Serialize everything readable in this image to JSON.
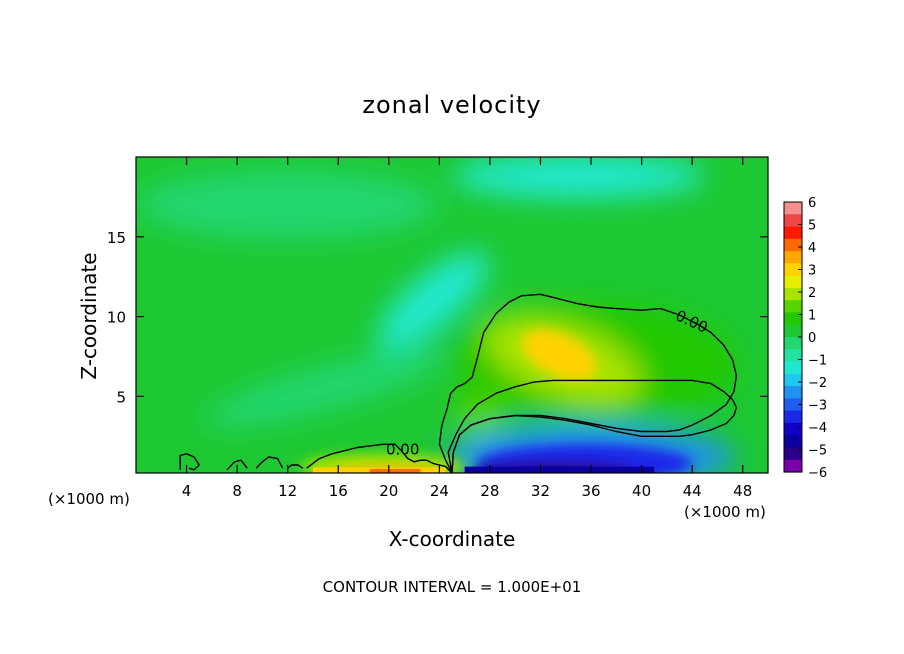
{
  "chart_data": {
    "type": "heatmap",
    "title": "zonal velocity",
    "xlabel": "X-coordinate",
    "ylabel": "Z-coordinate",
    "x_unit_left": "(×1000 m)",
    "x_unit_right": "(×1000 m)",
    "footer": "CONTOUR INTERVAL = 1.000E+01",
    "xlim": [
      0,
      50
    ],
    "ylim": [
      0.2,
      20
    ],
    "x_ticks": [
      4,
      8,
      12,
      16,
      20,
      24,
      28,
      32,
      36,
      40,
      44,
      48
    ],
    "y_ticks": [
      5,
      10,
      15
    ],
    "colorbar": {
      "levels": [
        6,
        5,
        4,
        3,
        2,
        1,
        0,
        -1,
        -2,
        -3,
        -4,
        -5,
        -6
      ],
      "colors": [
        "#f59090",
        "#f04646",
        "#ff1a00",
        "#ff6a00",
        "#ffa800",
        "#ffd200",
        "#e8ee00",
        "#a8e400",
        "#55d400",
        "#22c800",
        "#1ec832",
        "#22d670",
        "#22e2a4",
        "#20e8d0",
        "#20c8f0",
        "#2092f0",
        "#205cf0",
        "#1c28e8",
        "#1000c8",
        "#0a00a0",
        "#2a008a",
        "#7a00a8"
      ]
    },
    "background_value": 0.3,
    "features": [
      {
        "kind": "jet",
        "label": "positive maximum",
        "x": 33.5,
        "z": 7.5,
        "value": 3.4
      },
      {
        "kind": "jet",
        "label": "near-surface positive",
        "x": 20,
        "z": 0.4,
        "value": 4
      },
      {
        "kind": "return flow",
        "label": "near-surface negative",
        "x": 36,
        "z": 0.6,
        "value": -5.5
      },
      {
        "kind": "weak negative",
        "label": "mid-level band",
        "x": 23,
        "z": 11,
        "value": -1.5
      },
      {
        "kind": "weak negative",
        "label": "upper band",
        "x": 35,
        "z": 18.5,
        "value": -1.2
      }
    ],
    "contours": [
      {
        "level_label": "0.00",
        "x": [
          25.0,
          24.7,
          25.3,
          26.0,
          27.0,
          28.5,
          30.0,
          31.5,
          33.0,
          34.5,
          36.5,
          38.0,
          40.0,
          42.0,
          44.0,
          45.5,
          46.5,
          47.2,
          47.5,
          47.3,
          46.7,
          45.5,
          44.0,
          43.0,
          42.0,
          40.0,
          38.0,
          36.0,
          34.0,
          32.0,
          30.0,
          28.0,
          26.5,
          25.6,
          25.1,
          25.0
        ],
        "z": [
          0.2,
          1.5,
          2.6,
          3.6,
          4.5,
          5.2,
          5.6,
          5.9,
          6.0,
          6.0,
          6.0,
          6.0,
          6.0,
          6.0,
          6.0,
          5.8,
          5.3,
          4.8,
          4.3,
          3.8,
          3.3,
          2.9,
          2.6,
          2.5,
          2.5,
          2.5,
          2.8,
          3.2,
          3.5,
          3.7,
          3.8,
          3.6,
          3.2,
          2.6,
          1.5,
          0.2
        ]
      },
      {
        "level_label": "0.00",
        "x": [
          25.0,
          24.5,
          24.0,
          24.2,
          24.6,
          24.9,
          25.4,
          26.0,
          26.6,
          27.0,
          27.5,
          28.5,
          29.5,
          30.5,
          32.0,
          33.5,
          35.0,
          36.5,
          38.0,
          40.0,
          41.5,
          43.0,
          44.5,
          45.5,
          46.5,
          47.2,
          47.5,
          47.3,
          46.7,
          45.5,
          44.0,
          43.0,
          42.0,
          40.0,
          38.0,
          36.0,
          34.0,
          32.0,
          30.0,
          28.0,
          26.5,
          25.6,
          25.1,
          25.0
        ],
        "z": [
          0.2,
          1.0,
          2.0,
          3.2,
          4.2,
          5.2,
          5.6,
          5.8,
          6.2,
          7.4,
          9.0,
          10.2,
          10.9,
          11.3,
          11.4,
          11.1,
          10.8,
          10.6,
          10.5,
          10.4,
          10.5,
          10.1,
          9.5,
          9.0,
          8.2,
          7.3,
          6.3,
          5.3,
          4.5,
          3.8,
          3.2,
          2.9,
          2.8,
          2.8,
          3.0,
          3.3,
          3.6,
          3.8,
          3.8,
          3.6,
          3.2,
          2.6,
          1.5,
          0.2
        ]
      },
      {
        "level_label": "0.00",
        "x": [
          13.5,
          14.5,
          15.5,
          16.5,
          17.5,
          18.5,
          19.5,
          20.5,
          21.0,
          21.5,
          22.0,
          22.5,
          23.0,
          23.5,
          24.0,
          24.5,
          25.0
        ],
        "z": [
          0.5,
          1.1,
          1.4,
          1.6,
          1.8,
          1.9,
          2.0,
          2.0,
          1.6,
          1.1,
          0.9,
          1.0,
          1.0,
          0.8,
          0.7,
          0.6,
          0.2
        ]
      },
      {
        "level_label": "",
        "x": [
          3.5,
          3.5,
          4.0,
          4.6,
          5.0,
          4.6,
          4.2
        ],
        "z": [
          0.4,
          1.3,
          1.4,
          1.2,
          0.7,
          0.4,
          0.5
        ]
      },
      {
        "level_label": "",
        "x": [
          7.2,
          7.8,
          8.3,
          8.8
        ],
        "z": [
          0.4,
          0.9,
          1.0,
          0.5
        ]
      },
      {
        "level_label": "",
        "x": [
          9.5,
          10.0,
          10.5,
          11.2,
          11.6
        ],
        "z": [
          0.5,
          0.9,
          1.2,
          1.1,
          0.5
        ]
      },
      {
        "level_label": "",
        "x": [
          12.0,
          12.3,
          12.8,
          13.2
        ],
        "z": [
          0.5,
          0.7,
          0.7,
          0.5
        ]
      }
    ]
  }
}
